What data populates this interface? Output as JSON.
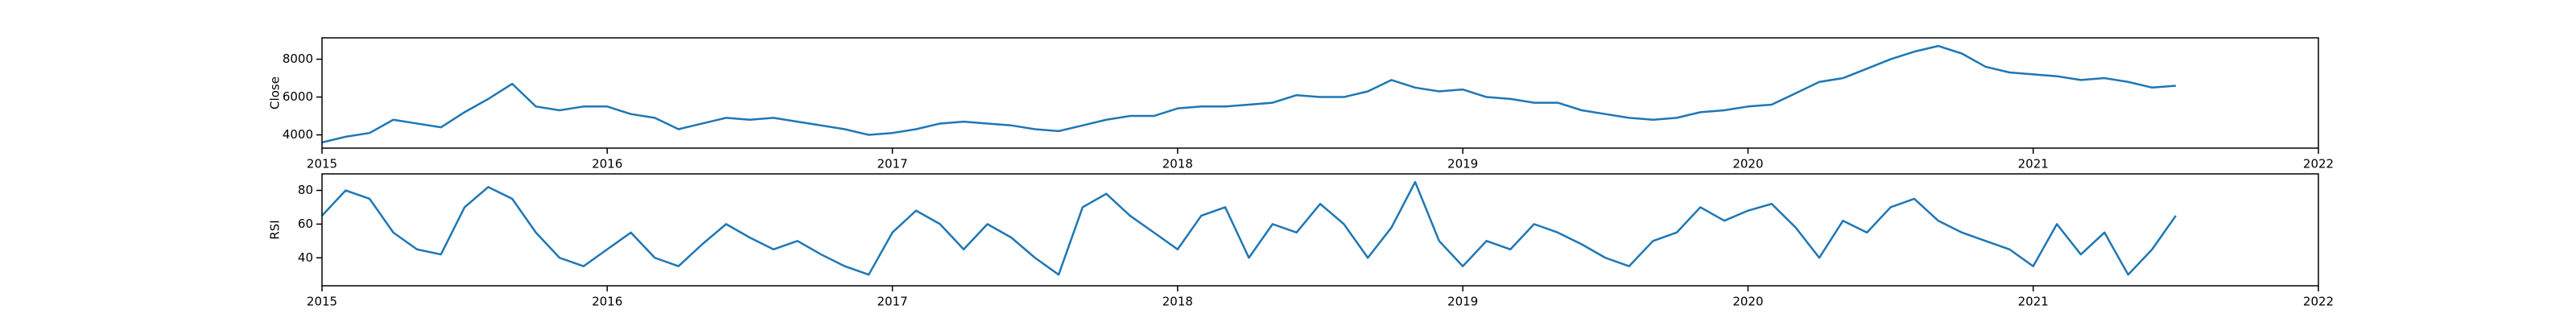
{
  "chart_data": [
    {
      "type": "line",
      "ylabel": "Close",
      "x": [
        2015,
        2015.083,
        2015.167,
        2015.25,
        2015.333,
        2015.417,
        2015.5,
        2015.583,
        2015.667,
        2015.75,
        2015.833,
        2015.917,
        2016,
        2016.083,
        2016.167,
        2016.25,
        2016.333,
        2016.417,
        2016.5,
        2016.583,
        2016.667,
        2016.75,
        2016.833,
        2016.917,
        2017,
        2017.083,
        2017.167,
        2017.25,
        2017.333,
        2017.417,
        2017.5,
        2017.583,
        2017.667,
        2017.75,
        2017.833,
        2017.917,
        2018,
        2018.083,
        2018.167,
        2018.25,
        2018.333,
        2018.417,
        2018.5,
        2018.583,
        2018.667,
        2018.75,
        2018.833,
        2018.917,
        2019,
        2019.083,
        2019.167,
        2019.25,
        2019.333,
        2019.417,
        2019.5,
        2019.583,
        2019.667,
        2019.75,
        2019.833,
        2019.917,
        2020,
        2020.083,
        2020.167,
        2020.25,
        2020.333,
        2020.417,
        2020.5,
        2020.583,
        2020.667,
        2020.75,
        2020.833,
        2020.917,
        2021,
        2021.083,
        2021.167,
        2021.25,
        2021.333,
        2021.417,
        2021.5
      ],
      "series": [
        {
          "color": "#1f77b4",
          "values": [
            3600,
            3900,
            4100,
            4800,
            4600,
            4400,
            5200,
            5900,
            6700,
            5500,
            5300,
            5500,
            5500,
            5100,
            4900,
            4300,
            4600,
            4900,
            4800,
            4900,
            4700,
            4500,
            4300,
            4000,
            4100,
            4300,
            4600,
            4700,
            4600,
            4500,
            4300,
            4200,
            4500,
            4800,
            5000,
            5000,
            5400,
            5500,
            5500,
            5600,
            5700,
            6100,
            6000,
            6000,
            6300,
            6900,
            6500,
            6300,
            6400,
            6000,
            5900,
            5700,
            5700,
            5300,
            5100,
            4900,
            4800,
            4900,
            5200,
            5300,
            5500,
            5600,
            6200,
            6800,
            7000,
            7500,
            8000,
            8400,
            8700,
            8300,
            7600,
            7300,
            7200,
            7100,
            6900,
            7000,
            6800,
            6500,
            6600
          ]
        }
      ],
      "xlim": [
        2015,
        2022
      ],
      "xticks": [
        2015,
        2016,
        2017,
        2018,
        2019,
        2020,
        2021,
        2022
      ],
      "ylim": [
        3300,
        9130
      ],
      "yticks": [
        4000,
        6000,
        8000
      ]
    },
    {
      "type": "line",
      "ylabel": "RSI",
      "x": [
        2015,
        2015.083,
        2015.167,
        2015.25,
        2015.333,
        2015.417,
        2015.5,
        2015.583,
        2015.667,
        2015.75,
        2015.833,
        2015.917,
        2016,
        2016.083,
        2016.167,
        2016.25,
        2016.333,
        2016.417,
        2016.5,
        2016.583,
        2016.667,
        2016.75,
        2016.833,
        2016.917,
        2017,
        2017.083,
        2017.167,
        2017.25,
        2017.333,
        2017.417,
        2017.5,
        2017.583,
        2017.667,
        2017.75,
        2017.833,
        2017.917,
        2018,
        2018.083,
        2018.167,
        2018.25,
        2018.333,
        2018.417,
        2018.5,
        2018.583,
        2018.667,
        2018.75,
        2018.833,
        2018.917,
        2019,
        2019.083,
        2019.167,
        2019.25,
        2019.333,
        2019.417,
        2019.5,
        2019.583,
        2019.667,
        2019.75,
        2019.833,
        2019.917,
        2020,
        2020.083,
        2020.167,
        2020.25,
        2020.333,
        2020.417,
        2020.5,
        2020.583,
        2020.667,
        2020.75,
        2020.833,
        2020.917,
        2021,
        2021.083,
        2021.167,
        2021.25,
        2021.333,
        2021.417,
        2021.5
      ],
      "series": [
        {
          "color": "#1f77b4",
          "values": [
            65,
            80,
            75,
            55,
            45,
            42,
            70,
            82,
            75,
            55,
            40,
            35,
            45,
            55,
            40,
            35,
            48,
            60,
            52,
            45,
            50,
            42,
            35,
            30,
            55,
            68,
            60,
            45,
            60,
            52,
            40,
            30,
            70,
            78,
            65,
            55,
            45,
            65,
            70,
            40,
            60,
            55,
            72,
            60,
            40,
            58,
            85,
            50,
            35,
            50,
            45,
            60,
            55,
            48,
            40,
            35,
            50,
            55,
            70,
            62,
            68,
            72,
            58,
            40,
            62,
            55,
            70,
            75,
            62,
            55,
            50,
            45,
            35,
            60,
            42,
            55,
            30,
            45,
            65
          ]
        }
      ],
      "xlim": [
        2015,
        2022
      ],
      "xticks": [
        2015,
        2016,
        2017,
        2018,
        2019,
        2020,
        2021,
        2022
      ],
      "ylim": [
        23.4,
        89.8
      ],
      "yticks": [
        40,
        60,
        80
      ]
    }
  ]
}
